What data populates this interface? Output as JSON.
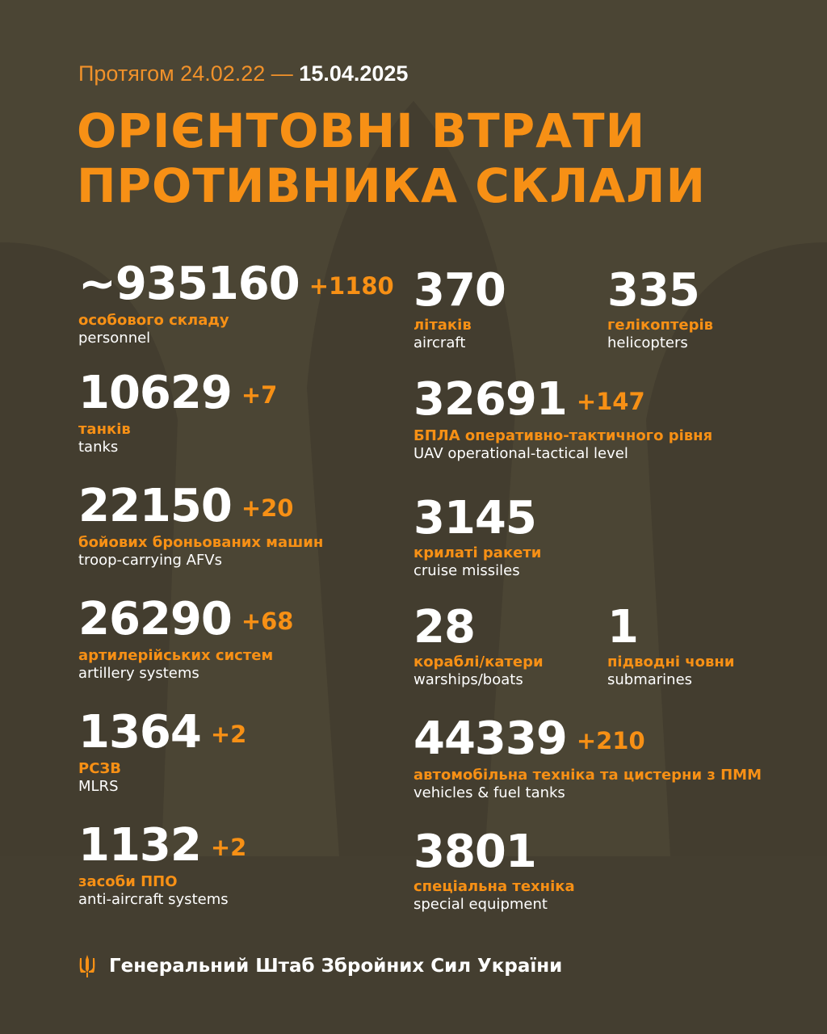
{
  "header": {
    "period_prefix": "Протягом 24.02.22 —",
    "period_end": "15.04.2025",
    "title_line1": "ОРІЄНТОВНІ ВТРАТИ",
    "title_line2": "ПРОТИВНИКА СКЛАЛИ"
  },
  "left": [
    {
      "value": "~935160",
      "delta": "+1180",
      "ua": "особового складу",
      "en": "personnel"
    },
    {
      "value": "10629",
      "delta": "+7",
      "ua": "танків",
      "en": "tanks"
    },
    {
      "value": "22150",
      "delta": "+20",
      "ua": "бойових броньованих машин",
      "en": "troop-carrying AFVs"
    },
    {
      "value": "26290",
      "delta": "+68",
      "ua": "артилерійських систем",
      "en": "artillery systems"
    },
    {
      "value": "1364",
      "delta": "+2",
      "ua": "РСЗВ",
      "en": "MLRS"
    },
    {
      "value": "1132",
      "delta": "+2",
      "ua": "засоби ППО",
      "en": "anti-aircraft systems"
    }
  ],
  "right": [
    {
      "value": "370",
      "delta": "",
      "ua": "літаків",
      "en": "aircraft"
    },
    {
      "value": "335",
      "delta": "",
      "ua": "гелікоптерів",
      "en": "helicopters"
    },
    {
      "value": "32691",
      "delta": "+147",
      "ua": "БПЛА оперативно-тактичного рівня",
      "en": "UAV operational-tactical level"
    },
    {
      "value": "3145",
      "delta": "",
      "ua": "крилаті ракети",
      "en": "cruise missiles"
    },
    {
      "value": "28",
      "delta": "",
      "ua": "кораблі/катери",
      "en": "warships/boats"
    },
    {
      "value": "1",
      "delta": "",
      "ua": "підводні човни",
      "en": "submarines"
    },
    {
      "value": "44339",
      "delta": "+210",
      "ua": "автомобільна техніка та цистерни з ПММ",
      "en": "vehicles & fuel tanks"
    },
    {
      "value": "3801",
      "delta": "",
      "ua": "спеціальна техніка",
      "en": "special equipment"
    }
  ],
  "footer": {
    "text": "Генеральний Штаб Збройних Сил України",
    "icon": "trident-icon"
  },
  "colors": {
    "background": "#4b4534",
    "accent": "#f79015",
    "text": "#ffffff"
  }
}
